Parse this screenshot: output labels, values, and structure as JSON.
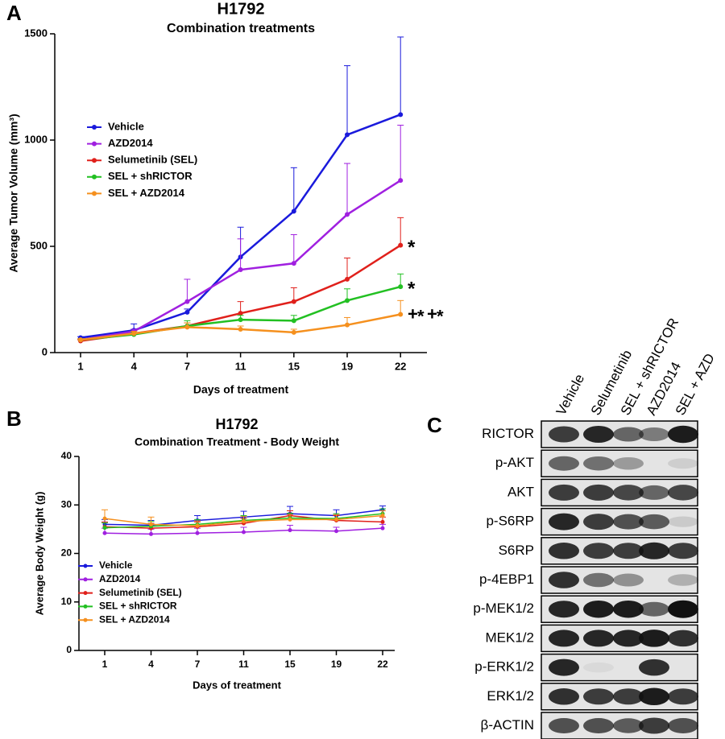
{
  "panels": [
    "A",
    "B",
    "C"
  ],
  "chart_data": [
    {
      "type": "line",
      "title": "H1792",
      "subtitle": "Combination treatments",
      "x_label": "Days of treatment",
      "y_label": "Average Tumor  Volume (mm³)",
      "categories": [
        "1",
        "4",
        "7",
        "11",
        "15",
        "19",
        "22"
      ],
      "ylim": [
        0,
        1500
      ],
      "yticks": [
        0,
        500,
        1000,
        1500
      ],
      "legend": "upper left",
      "series": [
        {
          "name": "Vehicle",
          "color": "#1a1adc",
          "values": [
            70,
            105,
            190,
            450,
            665,
            1025,
            1120
          ],
          "errors": [
            5,
            30,
            15,
            140,
            205,
            325,
            365
          ]
        },
        {
          "name": "AZD2014",
          "color": "#a020e0",
          "values": [
            60,
            100,
            240,
            390,
            420,
            650,
            810
          ],
          "errors": [
            5,
            10,
            105,
            145,
            135,
            240,
            260
          ]
        },
        {
          "name": "Selumetinib (SEL)",
          "color": "#e0201b",
          "values": [
            55,
            90,
            125,
            185,
            240,
            345,
            505
          ],
          "errors": [
            5,
            10,
            15,
            55,
            65,
            100,
            130
          ]
        },
        {
          "name": "SEL + shRICTOR",
          "color": "#22c022",
          "values": [
            60,
            85,
            125,
            155,
            150,
            245,
            310
          ],
          "errors": [
            5,
            10,
            25,
            20,
            25,
            55,
            60
          ]
        },
        {
          "name": "SEL + AZD2014",
          "color": "#f5901e",
          "values": [
            60,
            90,
            120,
            110,
            95,
            130,
            180
          ],
          "errors": [
            5,
            10,
            20,
            15,
            15,
            35,
            65
          ]
        }
      ],
      "annotations": [
        {
          "text": "*",
          "color": "#1a1adc"
        },
        {
          "text": "*",
          "color": "#1a1adc"
        },
        {
          "text": "+",
          "color": "#1a1adc"
        },
        {
          "text": "*",
          "color": "#a020e0"
        },
        {
          "text": "+",
          "color": "#e0201b"
        },
        {
          "text": "*",
          "color": "#22c022"
        }
      ]
    },
    {
      "type": "line",
      "title": "H1792",
      "subtitle": "Combination Treatment - Body Weight",
      "x_label": "Days of treatment",
      "y_label": "Average Body  Weight (g)",
      "categories": [
        "1",
        "4",
        "7",
        "11",
        "15",
        "19",
        "22"
      ],
      "ylim": [
        0,
        40
      ],
      "yticks": [
        0,
        10,
        20,
        30,
        40
      ],
      "legend": "lower left",
      "series": [
        {
          "name": "Vehicle",
          "color": "#1a1adc",
          "values": [
            26,
            25.8,
            26.8,
            27.5,
            28.2,
            27.8,
            29
          ],
          "errors": [
            1,
            1,
            1,
            1.2,
            1.5,
            1.2,
            0.8
          ]
        },
        {
          "name": "AZD2014",
          "color": "#a020e0",
          "values": [
            24.2,
            24,
            24.2,
            24.4,
            24.8,
            24.6,
            25.2
          ],
          "errors": [
            1,
            1,
            1,
            1,
            1,
            0.8,
            0.8
          ]
        },
        {
          "name": "Selumetinib  (SEL)",
          "color": "#e0201b",
          "values": [
            25.5,
            25.2,
            25.5,
            26.2,
            27.8,
            26.8,
            26.5
          ],
          "errors": [
            1,
            1,
            1,
            1,
            1,
            1,
            1
          ]
        },
        {
          "name": "SEL + shRICTOR",
          "color": "#22c022",
          "values": [
            25.3,
            25.6,
            26,
            26.8,
            27.3,
            27.2,
            28.2
          ],
          "errors": [
            1,
            1,
            1,
            1,
            1,
            1,
            1
          ]
        },
        {
          "name": "SEL + AZD2014",
          "color": "#f5901e",
          "values": [
            27.2,
            26,
            25.7,
            26.6,
            27,
            27,
            27.8
          ],
          "errors": [
            1.8,
            1.5,
            1,
            1,
            1,
            1,
            1
          ]
        }
      ]
    }
  ],
  "blot": {
    "lanes": [
      "Vehicle",
      "Selumetinib",
      "SEL + shRICTOR",
      "AZD2014",
      "SEL + AZD"
    ],
    "rows": [
      "RICTOR",
      "p-AKT",
      "AKT",
      "p-S6RP",
      "S6RP",
      "p-4EBP1",
      "p-MEK1/2",
      "MEK1/2",
      "p-ERK1/2",
      "ERK1/2",
      "β-ACTIN"
    ]
  }
}
